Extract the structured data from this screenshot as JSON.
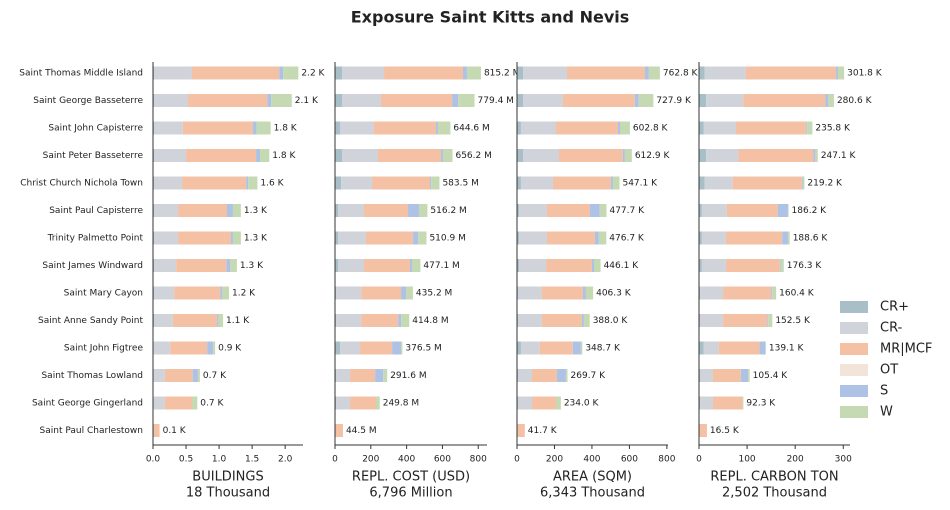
{
  "title": "Exposure Saint Kitts and Nevis",
  "legend": [
    {
      "name": "CR+",
      "color": "#a9bfc8"
    },
    {
      "name": "CR-",
      "color": "#d0d3da"
    },
    {
      "name": "MR|MCF",
      "color": "#f4c1a5"
    },
    {
      "name": "OT",
      "color": "#f2e4d8"
    },
    {
      "name": "S",
      "color": "#aec2e5"
    },
    {
      "name": "W",
      "color": "#c5d9b3"
    }
  ],
  "categories": [
    "Saint Thomas Middle Island",
    "Saint George Basseterre",
    "Saint John Capisterre",
    "Saint Peter Basseterre",
    "Christ Church Nichola Town",
    "Saint Paul Capisterre",
    "Trinity Palmetto Point",
    "Saint James Windward",
    "Saint Mary Cayon",
    "Saint Anne Sandy Point",
    "Saint John Figtree",
    "Saint Thomas Lowland",
    "Saint George Gingerland",
    "Saint Paul Charlestown"
  ],
  "chart_data": [
    {
      "type": "bar",
      "xlabel": "BUILDINGS",
      "xlabel_total": "18 Thousand",
      "xlim": [
        0,
        2.27
      ],
      "xticks": [
        {
          "value": 0,
          "label": "0.0"
        },
        0.5,
        {
          "value": 1,
          "label": "1.0"
        },
        1.5,
        {
          "value": 2,
          "label": "2.0"
        }
      ],
      "series": [
        {
          "values": [
            0.02,
            0.02,
            0.02,
            0.02,
            0.02,
            0.02,
            0.02,
            0.02,
            0.02,
            0.02,
            0.01,
            0.01,
            0.01,
            0
          ]
        },
        {
          "values": [
            0.57,
            0.51,
            0.43,
            0.48,
            0.42,
            0.36,
            0.36,
            0.33,
            0.3,
            0.28,
            0.25,
            0.17,
            0.17,
            0
          ]
        },
        {
          "values": [
            1.32,
            1.2,
            1.06,
            1.06,
            0.97,
            0.74,
            0.8,
            0.76,
            0.7,
            0.67,
            0.56,
            0.42,
            0.41,
            0.1
          ]
        },
        {
          "values": [
            0,
            0,
            0,
            0,
            0,
            0,
            0,
            0,
            0,
            0,
            0,
            0,
            0,
            0
          ]
        },
        {
          "values": [
            0.06,
            0.06,
            0.06,
            0.06,
            0.03,
            0.09,
            0.03,
            0.06,
            0.03,
            0.02,
            0.09,
            0.08,
            0,
            0
          ]
        },
        {
          "values": [
            0.23,
            0.31,
            0.21,
            0.14,
            0.14,
            0.12,
            0.12,
            0.1,
            0.1,
            0.07,
            0.03,
            0.03,
            0.08,
            0
          ]
        }
      ],
      "totals": [
        2.2,
        2.1,
        1.78,
        1.76,
        1.58,
        1.33,
        1.33,
        1.27,
        1.15,
        1.06,
        0.94,
        0.71,
        0.67,
        0.1
      ],
      "value_labels": [
        "2.2 K",
        "2.1 K",
        "1.8 K",
        "1.8 K",
        "1.6 K",
        "1.3 K",
        "1.3 K",
        "1.3 K",
        "1.2 K",
        "1.1 K",
        "0.9 K",
        "0.7 K",
        "0.7 K",
        "0.1 K"
      ]
    },
    {
      "type": "bar",
      "xlabel": "REPL. COST (USD)",
      "xlabel_total": "6,796 Million",
      "xlim": [
        0,
        849
      ],
      "xticks": [
        0,
        200,
        400,
        600,
        800
      ],
      "series": [
        {
          "values": [
            39,
            39,
            28,
            39,
            34,
            17,
            17,
            17,
            6,
            6,
            28,
            6,
            6,
            0
          ]
        },
        {
          "values": [
            235,
            218,
            190,
            201,
            173,
            145,
            156,
            145,
            140,
            140,
            112,
            78,
            78,
            0
          ]
        },
        {
          "values": [
            441,
            397,
            346,
            352,
            324,
            246,
            263,
            257,
            223,
            207,
            179,
            140,
            145,
            44.5
          ]
        },
        {
          "values": [
            0,
            0,
            0,
            0,
            0,
            0,
            0,
            0,
            0,
            0,
            0,
            0,
            0,
            0
          ]
        },
        {
          "values": [
            22,
            34,
            11,
            11,
            6,
            61,
            28,
            11,
            28,
            17,
            50,
            45,
            0,
            0
          ]
        },
        {
          "values": [
            78.2,
            91.4,
            69.6,
            53.2,
            46.5,
            47.2,
            46.9,
            47.1,
            38.2,
            44.8,
            7.5,
            22.6,
            20.8,
            0
          ]
        }
      ],
      "totals": [
        815.2,
        779.4,
        644.6,
        656.2,
        583.5,
        516.2,
        510.9,
        477.1,
        435.2,
        414.8,
        376.5,
        291.6,
        249.8,
        44.5
      ],
      "value_labels": [
        "815.2 M",
        "779.4 M",
        "644.6 M",
        "656.2 M",
        "583.5 M",
        "516.2 M",
        "510.9 M",
        "477.1 M",
        "435.2 M",
        "414.8 M",
        "376.5 M",
        "291.6 M",
        "249.8 M",
        "44.5 M"
      ]
    },
    {
      "type": "bar",
      "xlabel": "AREA (SQM)",
      "xlabel_total": "6,343 Thousand",
      "xlim": [
        0,
        806
      ],
      "xticks": [
        0,
        200,
        400,
        600,
        800
      ],
      "series": [
        {
          "values": [
            32,
            32,
            21,
            32,
            21,
            11,
            11,
            11,
            5,
            5,
            21,
            5,
            5,
            0
          ]
        },
        {
          "values": [
            235,
            213,
            187,
            192,
            171,
            149,
            149,
            144,
            128,
            128,
            101,
            75,
            75,
            0
          ]
        },
        {
          "values": [
            416,
            384,
            331,
            341,
            309,
            229,
            256,
            245,
            219,
            213,
            176,
            133,
            128,
            41.7
          ]
        },
        {
          "values": [
            0,
            0,
            0,
            0,
            0,
            0,
            0,
            0,
            0,
            0,
            0,
            0,
            0,
            0
          ]
        },
        {
          "values": [
            21,
            21,
            11,
            11,
            11,
            53,
            21,
            11,
            16,
            11,
            43,
            48,
            0,
            0
          ]
        },
        {
          "values": [
            58.8,
            77.9,
            52.8,
            36.9,
            35.1,
            35.7,
            39.7,
            35.1,
            38.3,
            31,
            7.7,
            8.7,
            26,
            0
          ]
        }
      ],
      "totals": [
        762.8,
        727.9,
        602.8,
        612.9,
        547.1,
        477.7,
        476.7,
        446.1,
        406.3,
        388.0,
        348.7,
        269.7,
        234.0,
        41.7
      ],
      "value_labels": [
        "762.8 K",
        "727.9 K",
        "602.8 K",
        "612.9 K",
        "547.1 K",
        "477.7 K",
        "476.7 K",
        "446.1 K",
        "406.3 K",
        "388.0 K",
        "348.7 K",
        "269.7 K",
        "234.0 K",
        "41.7 K"
      ]
    },
    {
      "type": "bar",
      "xlabel": "REPL. CARBON TON",
      "xlabel_total": "2,502 Thousand",
      "xlim": [
        0,
        314
      ],
      "xticks": [
        0,
        100,
        200,
        300
      ],
      "series": [
        {
          "values": [
            12,
            15,
            10,
            15,
            12,
            6,
            6,
            6,
            2,
            2,
            10,
            2,
            2,
            0
          ]
        },
        {
          "values": [
            85,
            77,
            67,
            67,
            58,
            52,
            50,
            50,
            48,
            48,
            31,
            27,
            27,
            0
          ]
        },
        {
          "values": [
            188,
            171,
            146,
            156,
            144,
            106,
            117,
            112,
            100,
            92,
            85,
            58,
            61.3,
            16.5
          ]
        },
        {
          "values": [
            0,
            0,
            0,
            0,
            0,
            0,
            0,
            0,
            0,
            0,
            0,
            0,
            0,
            0
          ]
        },
        {
          "values": [
            4,
            6,
            2,
            4,
            2,
            21,
            12,
            2,
            2,
            2,
            12,
            15,
            0,
            0
          ]
        },
        {
          "values": [
            12.8,
            11.6,
            10.8,
            5.1,
            3.2,
            1.2,
            3.6,
            6.3,
            8.4,
            8.5,
            1.1,
            3.4,
            2,
            0
          ]
        }
      ],
      "totals": [
        301.8,
        280.6,
        235.8,
        247.1,
        219.2,
        186.2,
        188.6,
        176.3,
        160.4,
        152.5,
        139.1,
        105.4,
        92.3,
        16.5
      ],
      "value_labels": [
        "301.8 K",
        "280.6 K",
        "235.8 K",
        "247.1 K",
        "219.2 K",
        "186.2 K",
        "188.6 K",
        "176.3 K",
        "160.4 K",
        "152.5 K",
        "139.1 K",
        "105.4 K",
        "92.3 K",
        "16.5 K"
      ]
    }
  ]
}
